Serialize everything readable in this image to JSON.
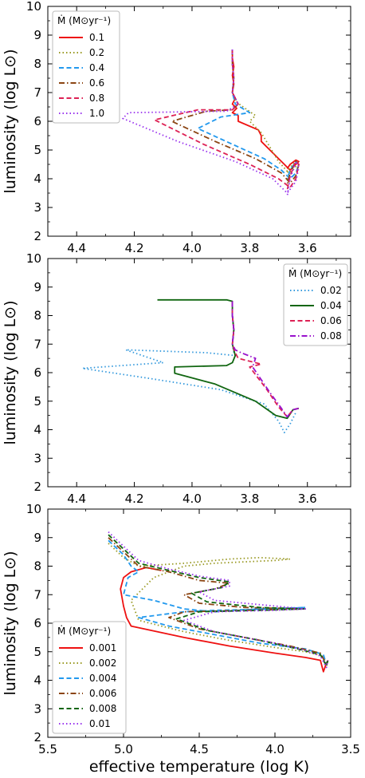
{
  "chart_data": [
    {
      "type": "line",
      "ylabel": "luminosity (log L⊙)",
      "xlabel": "",
      "xlim": [
        4.5,
        3.45
      ],
      "ylim": [
        2,
        10
      ],
      "xticks": [
        "4.4",
        "4.2",
        "4.0",
        "3.8",
        "3.6"
      ],
      "yticks": [
        "2",
        "3",
        "4",
        "5",
        "6",
        "7",
        "8",
        "9",
        "10"
      ],
      "legend": {
        "title": "Ṁ (M⊙yr⁻¹)",
        "placement": "top-left"
      },
      "series": [
        {
          "name": "0.1",
          "color": "#ee1111",
          "dash": "solid",
          "x": [
            3.86,
            3.86,
            3.855,
            3.86,
            3.855,
            3.86,
            3.85,
            3.86,
            3.845,
            3.86,
            3.84,
            3.84,
            3.77,
            3.76,
            3.76,
            3.72,
            3.68,
            3.66,
            3.65,
            3.63,
            3.64,
            3.66,
            3.67
          ],
          "y": [
            8.5,
            8.2,
            7.9,
            7.6,
            7.3,
            7.0,
            6.8,
            6.6,
            6.45,
            6.3,
            6.2,
            6.0,
            5.7,
            5.5,
            5.3,
            4.9,
            4.5,
            4.3,
            4.4,
            4.6,
            4.65,
            4.5,
            4.35
          ]
        },
        {
          "name": "0.2",
          "color": "#999922",
          "dash": "dotted",
          "x": [
            3.86,
            3.86,
            3.855,
            3.86,
            3.85,
            3.83,
            3.78,
            3.8,
            3.76,
            3.73,
            3.7,
            3.66,
            3.65,
            3.63,
            3.64,
            3.66,
            3.67
          ],
          "y": [
            8.5,
            8.0,
            7.5,
            7.0,
            6.7,
            6.55,
            6.2,
            6.0,
            5.6,
            5.1,
            4.6,
            4.15,
            4.3,
            4.55,
            4.6,
            4.4,
            4.2
          ]
        },
        {
          "name": "0.4",
          "color": "#2299ee",
          "dash": "dashed",
          "x": [
            3.86,
            3.86,
            3.855,
            3.86,
            3.85,
            3.8,
            3.9,
            3.98,
            3.86,
            3.75,
            3.69,
            3.66,
            3.64,
            3.63,
            3.64,
            3.66,
            3.67
          ],
          "y": [
            8.5,
            8.0,
            7.5,
            7.0,
            6.6,
            6.3,
            6.15,
            5.75,
            5.2,
            4.7,
            4.3,
            4.0,
            4.2,
            4.5,
            4.6,
            4.3,
            4.0
          ]
        },
        {
          "name": "0.6",
          "color": "#8b4513",
          "dash": "dashdot",
          "x": [
            3.86,
            3.86,
            3.855,
            3.86,
            3.84,
            3.86,
            3.95,
            4.07,
            3.92,
            3.78,
            3.69,
            3.66,
            3.64,
            3.63,
            3.64,
            3.66,
            3.67
          ],
          "y": [
            8.5,
            8.0,
            7.5,
            7.0,
            6.6,
            6.4,
            6.35,
            6.0,
            5.3,
            4.7,
            4.2,
            3.85,
            4.1,
            4.5,
            4.6,
            4.2,
            3.8
          ]
        },
        {
          "name": "0.8",
          "color": "#dd2255",
          "dash": "dashed",
          "x": [
            3.86,
            3.86,
            3.855,
            3.86,
            3.84,
            3.86,
            3.98,
            4.13,
            3.96,
            3.8,
            3.7,
            3.66,
            3.64,
            3.63,
            3.64,
            3.66,
            3.67
          ],
          "y": [
            8.5,
            8.0,
            7.5,
            7.0,
            6.6,
            6.4,
            6.4,
            6.05,
            5.2,
            4.5,
            4.0,
            3.7,
            4.0,
            4.5,
            4.6,
            4.1,
            3.6
          ]
        },
        {
          "name": "1.0",
          "color": "#9933ee",
          "dash": "dotted",
          "x": [
            3.86,
            3.86,
            3.855,
            3.86,
            3.84,
            3.88,
            4.22,
            4.24,
            4.05,
            3.85,
            3.72,
            3.67,
            3.64,
            3.63,
            3.64,
            3.66,
            3.67
          ],
          "y": [
            8.5,
            8.0,
            7.5,
            7.0,
            6.6,
            6.35,
            6.3,
            6.1,
            5.3,
            4.6,
            4.0,
            3.5,
            3.9,
            4.4,
            4.6,
            4.0,
            3.4
          ]
        }
      ]
    },
    {
      "type": "line",
      "ylabel": "luminosity (log L⊙)",
      "xlabel": "",
      "xlim": [
        4.5,
        3.45
      ],
      "ylim": [
        2,
        10
      ],
      "xticks": [
        "4.4",
        "4.2",
        "4.0",
        "3.8",
        "3.6"
      ],
      "yticks": [
        "2",
        "3",
        "4",
        "5",
        "6",
        "7",
        "8",
        "9",
        "10"
      ],
      "legend": {
        "title": "Ṁ (M⊙yr⁻¹)",
        "placement": "top-right"
      },
      "series": [
        {
          "name": "0.02",
          "color": "#3399dd",
          "dash": "dotted",
          "x": [
            3.86,
            3.86,
            3.855,
            3.86,
            3.855,
            3.85,
            3.95,
            4.23,
            4.1,
            4.38,
            4.15,
            3.9,
            3.75,
            3.7,
            3.68,
            3.66,
            3.64
          ],
          "y": [
            8.5,
            8.0,
            7.5,
            7.0,
            6.7,
            6.6,
            6.7,
            6.8,
            6.35,
            6.15,
            5.8,
            5.4,
            4.9,
            4.3,
            3.9,
            4.2,
            4.6
          ]
        },
        {
          "name": "0.04",
          "color": "#116611",
          "dash": "solid",
          "x": [
            4.12,
            3.88,
            3.86,
            3.86,
            3.855,
            3.86,
            3.85,
            3.86,
            3.88,
            4.06,
            4.06,
            3.92,
            3.78,
            3.71,
            3.67,
            3.65,
            3.63
          ],
          "y": [
            8.55,
            8.55,
            8.5,
            8.0,
            7.5,
            7.0,
            6.6,
            6.35,
            6.25,
            6.2,
            5.98,
            5.6,
            5.0,
            4.5,
            4.4,
            4.7,
            4.75
          ]
        },
        {
          "name": "0.06",
          "color": "#dd2255",
          "dash": "dashed",
          "x": [
            3.86,
            3.86,
            3.855,
            3.86,
            3.85,
            3.84,
            3.76,
            3.8,
            3.74,
            3.7,
            3.67,
            3.65,
            3.63
          ],
          "y": [
            8.5,
            8.0,
            7.5,
            7.0,
            6.7,
            6.5,
            6.3,
            6.2,
            5.4,
            4.8,
            4.45,
            4.7,
            4.75
          ]
        },
        {
          "name": "0.08",
          "color": "#9911cc",
          "dash": "dashdot",
          "x": [
            3.86,
            3.86,
            3.855,
            3.86,
            3.85,
            3.83,
            3.78,
            3.79,
            3.73,
            3.69,
            3.67,
            3.65,
            3.63
          ],
          "y": [
            8.5,
            8.0,
            7.5,
            7.0,
            6.8,
            6.7,
            6.5,
            6.2,
            5.3,
            4.75,
            4.45,
            4.7,
            4.75
          ]
        }
      ]
    },
    {
      "type": "line",
      "ylabel": "luminosity (log L⊙)",
      "xlabel": "effective temperature (log K)",
      "xlim": [
        5.5,
        3.5
      ],
      "ylim": [
        2,
        10
      ],
      "xticks": [
        "5.5",
        "5.0",
        "4.5",
        "4.0",
        "3.5"
      ],
      "yticks": [
        "2",
        "3",
        "4",
        "5",
        "6",
        "7",
        "8",
        "9",
        "10"
      ],
      "legend": {
        "title": "Ṁ (M⊙yr⁻¹)",
        "placement": "bottom-left"
      },
      "series": [
        {
          "name": "0.001",
          "color": "#ee1111",
          "dash": "solid",
          "x": [
            4.75,
            4.85,
            4.95,
            5.0,
            5.02,
            5.0,
            4.98,
            4.95,
            4.6,
            4.3,
            4.0,
            3.8,
            3.7,
            3.68,
            3.66,
            3.65
          ],
          "y": [
            7.85,
            7.95,
            7.8,
            7.6,
            7.2,
            6.6,
            6.2,
            5.9,
            5.5,
            5.2,
            4.95,
            4.8,
            4.7,
            4.3,
            4.6,
            4.7
          ]
        },
        {
          "name": "0.002",
          "color": "#999922",
          "dash": "dotted",
          "x": [
            5.1,
            5.0,
            4.9,
            4.6,
            4.3,
            4.1,
            3.9,
            4.0,
            4.2,
            4.4,
            4.6,
            4.8,
            4.95,
            4.9,
            4.6,
            4.3,
            4.0,
            3.8,
            3.68,
            3.66,
            3.65
          ],
          "y": [
            8.8,
            8.3,
            8.0,
            8.1,
            8.25,
            8.3,
            8.25,
            8.2,
            8.15,
            8.1,
            8.0,
            7.6,
            6.8,
            6.1,
            5.7,
            5.4,
            5.15,
            5.0,
            4.85,
            4.5,
            4.7
          ]
        },
        {
          "name": "0.004",
          "color": "#2299ee",
          "dash": "dashed",
          "x": [
            5.1,
            5.0,
            4.95,
            4.9,
            4.97,
            5.0,
            4.8,
            4.6,
            4.4,
            4.1,
            3.8,
            4.0,
            4.4,
            4.6,
            4.9,
            4.7,
            4.4,
            4.1,
            3.8,
            3.68,
            3.66,
            3.65
          ],
          "y": [
            8.9,
            8.4,
            8.0,
            7.8,
            7.6,
            7.0,
            6.8,
            6.5,
            6.4,
            6.5,
            6.55,
            6.5,
            6.45,
            6.4,
            6.2,
            5.9,
            5.6,
            5.3,
            5.1,
            4.9,
            4.55,
            4.7
          ]
        },
        {
          "name": "0.006",
          "color": "#8b4513",
          "dash": "dashdot",
          "x": [
            5.1,
            5.0,
            4.9,
            4.7,
            4.5,
            4.3,
            4.4,
            4.6,
            4.5,
            4.2,
            3.8,
            4.2,
            4.6,
            4.7,
            4.5,
            4.2,
            3.9,
            3.7,
            3.66,
            3.65
          ],
          "y": [
            9.0,
            8.5,
            8.0,
            7.8,
            7.5,
            7.4,
            7.2,
            7.0,
            6.7,
            6.55,
            6.5,
            6.45,
            6.4,
            6.2,
            5.8,
            5.5,
            5.2,
            4.95,
            4.55,
            4.7
          ]
        },
        {
          "name": "0.008",
          "color": "#116611",
          "dash": "dashed",
          "x": [
            5.1,
            5.0,
            4.9,
            4.7,
            4.5,
            4.3,
            4.35,
            4.55,
            4.45,
            4.1,
            3.8,
            4.1,
            4.5,
            4.65,
            4.45,
            4.1,
            3.85,
            3.7,
            3.66,
            3.65
          ],
          "y": [
            9.1,
            8.6,
            8.1,
            7.85,
            7.6,
            7.45,
            7.25,
            7.05,
            6.75,
            6.55,
            6.5,
            6.45,
            6.4,
            6.15,
            5.75,
            5.4,
            5.1,
            4.9,
            4.5,
            4.7
          ]
        },
        {
          "name": "0.01",
          "color": "#9933ee",
          "dash": "dotted",
          "x": [
            5.1,
            5.0,
            4.9,
            4.7,
            4.5,
            4.3,
            4.3,
            4.5,
            4.4,
            4.0,
            3.8,
            4.0,
            4.4,
            4.6,
            4.4,
            4.0,
            3.8,
            3.7,
            3.66,
            3.65
          ],
          "y": [
            9.2,
            8.7,
            8.2,
            7.9,
            7.65,
            7.5,
            7.3,
            7.1,
            6.8,
            6.6,
            6.5,
            6.45,
            6.4,
            6.1,
            5.7,
            5.3,
            5.05,
            4.85,
            4.45,
            4.7
          ]
        }
      ]
    }
  ]
}
